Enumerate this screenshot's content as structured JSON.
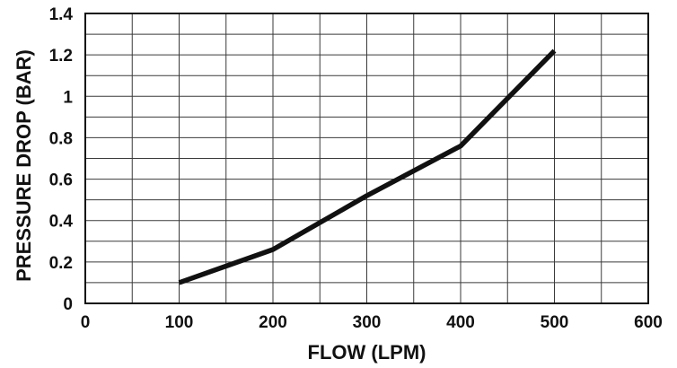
{
  "chart_data": {
    "type": "line",
    "title": "",
    "xlabel": "FLOW (LPM)",
    "ylabel": "PRESSURE DROP (BAR)",
    "xlim": [
      0,
      600
    ],
    "ylim": [
      0,
      1.4
    ],
    "x_ticks": [
      "0",
      "100",
      "200",
      "300",
      "400",
      "500",
      "600"
    ],
    "y_ticks": [
      "0",
      "0.2",
      "0.4",
      "0.6",
      "0.8",
      "1",
      "1.2",
      "1.4"
    ],
    "x_grid_step": 50,
    "y_grid_step": 0.1,
    "grid": true,
    "series": [
      {
        "x": [
          100,
          200,
          300,
          400,
          500
        ],
        "y": [
          0.1,
          0.26,
          0.52,
          0.76,
          1.22
        ],
        "color": "#111111"
      }
    ]
  }
}
